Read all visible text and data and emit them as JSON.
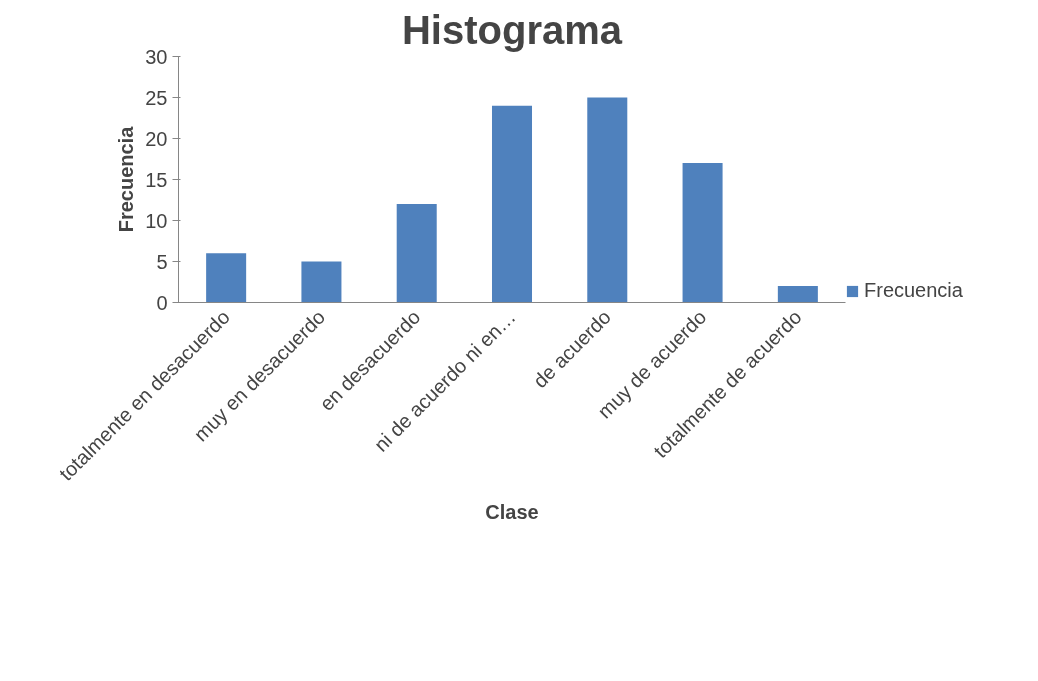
{
  "chart_data": {
    "type": "bar",
    "title": "Histograma",
    "xlabel": "Clase",
    "ylabel": "Frecuencia",
    "categories": [
      "totalmente en desacuerdo",
      "muy en desacuerdo",
      "en desacuerdo",
      "ni de acuerdo ni en…",
      "de acuerdo",
      "muy de acuerdo",
      "totalmente de acuerdo"
    ],
    "series": [
      {
        "name": "Frecuencia",
        "color": "#4f81bd",
        "values": [
          6,
          5,
          12,
          24,
          25,
          17,
          2
        ]
      }
    ],
    "ylim": [
      0,
      30
    ],
    "yticks": [
      0,
      5,
      10,
      15,
      20,
      25,
      30
    ],
    "grid": false,
    "legend": "right"
  }
}
